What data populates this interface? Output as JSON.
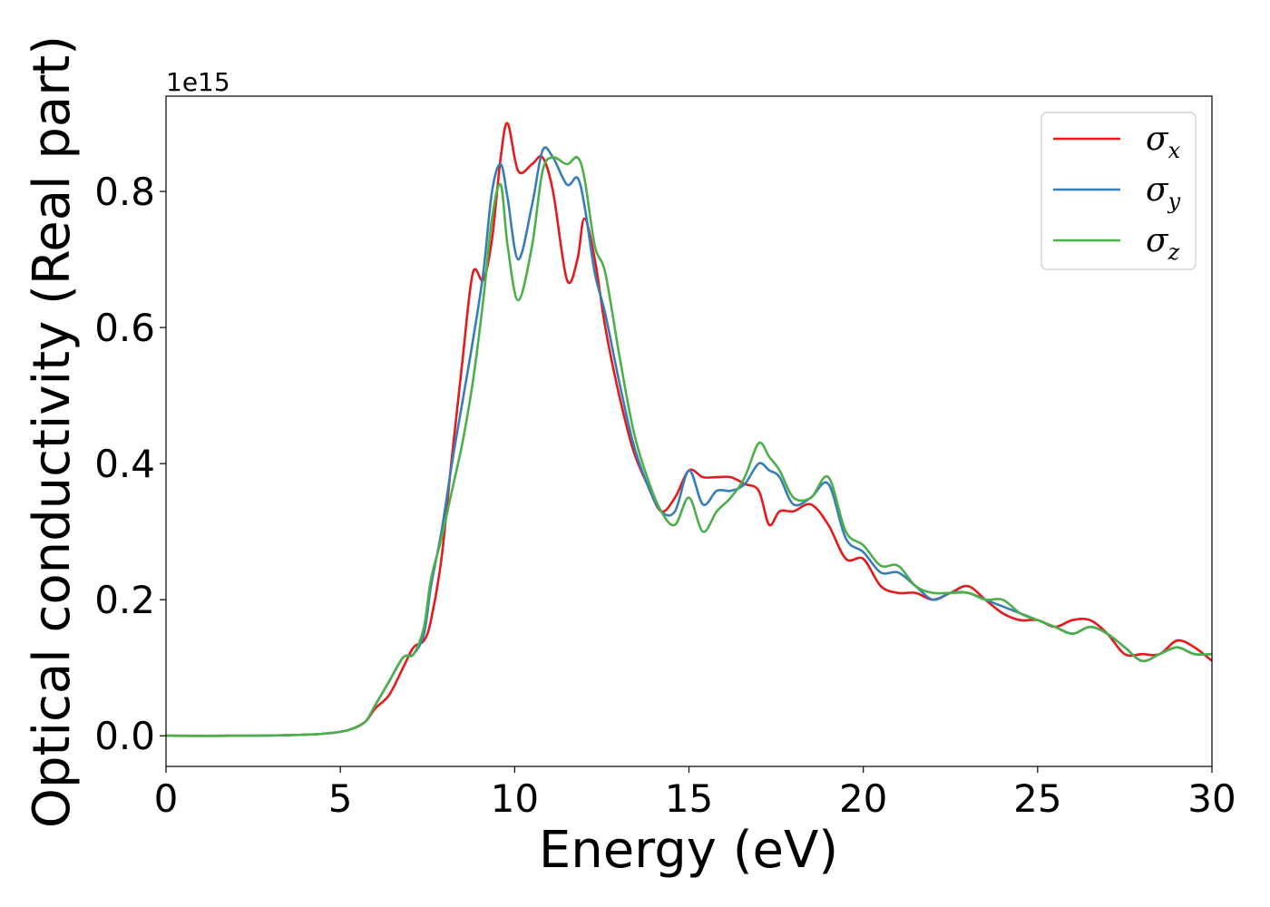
{
  "chart_data": {
    "type": "line",
    "title": "",
    "xlabel": "Energy (eV)",
    "ylabel": "Optical conductivity (Real part)",
    "y_offset_text": "1e15",
    "y_scale": 1000000000000000.0,
    "xlim": [
      0,
      30
    ],
    "ylim": [
      -0.045,
      0.94
    ],
    "x_ticks": [
      0,
      5,
      10,
      15,
      20,
      25,
      30
    ],
    "x_tick_labels": [
      "0",
      "5",
      "10",
      "15",
      "20",
      "25",
      "30"
    ],
    "y_ticks": [
      0.0,
      0.2,
      0.4,
      0.6,
      0.8
    ],
    "y_tick_labels": [
      "0.0",
      "0.2",
      "0.4",
      "0.6",
      "0.8"
    ],
    "grid": false,
    "legend_position": "top-right",
    "series": [
      {
        "name": "σ_x",
        "symbol": "σ",
        "subscript": "x",
        "color": "#e41a1c",
        "x": [
          0,
          2,
          3.5,
          4.5,
          5.2,
          5.7,
          6.0,
          6.4,
          6.8,
          7.1,
          7.4,
          7.6,
          7.9,
          8.2,
          8.5,
          8.8,
          9.1,
          9.35,
          9.6,
          9.8,
          10.1,
          10.5,
          10.8,
          11.1,
          11.5,
          11.8,
          12.0,
          12.3,
          12.6,
          13.0,
          13.4,
          13.8,
          14.2,
          14.6,
          15.0,
          15.4,
          15.8,
          16.2,
          16.6,
          17.0,
          17.3,
          17.6,
          18.0,
          18.5,
          19.0,
          19.5,
          20.0,
          20.5,
          21.0,
          21.5,
          22.0,
          22.5,
          23.0,
          23.5,
          24.0,
          24.5,
          25.0,
          25.5,
          26.0,
          26.5,
          27.0,
          27.5,
          28.0,
          28.5,
          29.0,
          29.5,
          30.0
        ],
        "y": [
          0.0,
          0.0,
          0.001,
          0.003,
          0.008,
          0.02,
          0.04,
          0.06,
          0.1,
          0.13,
          0.14,
          0.17,
          0.26,
          0.41,
          0.55,
          0.68,
          0.67,
          0.73,
          0.85,
          0.9,
          0.83,
          0.84,
          0.85,
          0.8,
          0.67,
          0.7,
          0.76,
          0.7,
          0.6,
          0.5,
          0.42,
          0.37,
          0.33,
          0.35,
          0.39,
          0.38,
          0.38,
          0.38,
          0.37,
          0.36,
          0.31,
          0.33,
          0.33,
          0.34,
          0.31,
          0.26,
          0.26,
          0.22,
          0.21,
          0.21,
          0.2,
          0.21,
          0.22,
          0.2,
          0.18,
          0.17,
          0.17,
          0.16,
          0.17,
          0.17,
          0.15,
          0.12,
          0.12,
          0.12,
          0.14,
          0.13,
          0.11
        ]
      },
      {
        "name": "σ_y",
        "symbol": "σ",
        "subscript": "y",
        "color": "#377eb8",
        "x": [
          0,
          2,
          3.5,
          4.5,
          5.2,
          5.7,
          6.0,
          6.4,
          6.8,
          7.1,
          7.4,
          7.6,
          7.9,
          8.2,
          8.5,
          8.8,
          9.1,
          9.35,
          9.6,
          9.8,
          10.1,
          10.5,
          10.8,
          11.1,
          11.5,
          11.8,
          12.0,
          12.3,
          12.6,
          13.0,
          13.4,
          13.8,
          14.2,
          14.6,
          15.0,
          15.4,
          15.8,
          16.2,
          16.6,
          17.0,
          17.3,
          17.6,
          18.0,
          18.5,
          19.0,
          19.5,
          20.0,
          20.5,
          21.0,
          21.5,
          22.0,
          22.5,
          23.0,
          23.5,
          24.0,
          24.5,
          25.0,
          25.5,
          26.0,
          26.5,
          27.0,
          27.5,
          28.0,
          28.5,
          29.0,
          29.5,
          30.0
        ],
        "y": [
          0.0,
          0.0,
          0.001,
          0.003,
          0.008,
          0.02,
          0.045,
          0.08,
          0.115,
          0.12,
          0.15,
          0.22,
          0.3,
          0.4,
          0.49,
          0.58,
          0.68,
          0.8,
          0.84,
          0.79,
          0.7,
          0.78,
          0.86,
          0.85,
          0.81,
          0.82,
          0.78,
          0.68,
          0.62,
          0.52,
          0.43,
          0.37,
          0.33,
          0.33,
          0.39,
          0.34,
          0.36,
          0.36,
          0.37,
          0.4,
          0.39,
          0.38,
          0.34,
          0.35,
          0.37,
          0.29,
          0.27,
          0.24,
          0.24,
          0.22,
          0.2,
          0.21,
          0.21,
          0.2,
          0.19,
          0.18,
          0.17,
          0.16,
          0.15,
          0.16,
          0.15,
          0.13,
          0.11,
          0.12,
          0.13,
          0.12,
          0.12
        ]
      },
      {
        "name": "σ_z",
        "symbol": "σ",
        "subscript": "z",
        "color": "#4daf4a",
        "x": [
          0,
          2,
          3.5,
          4.5,
          5.2,
          5.7,
          6.0,
          6.4,
          6.8,
          7.1,
          7.4,
          7.6,
          7.9,
          8.2,
          8.5,
          8.8,
          9.1,
          9.35,
          9.6,
          9.8,
          10.1,
          10.5,
          10.8,
          11.1,
          11.5,
          11.8,
          12.0,
          12.3,
          12.6,
          13.0,
          13.4,
          13.8,
          14.2,
          14.6,
          15.0,
          15.4,
          15.8,
          16.2,
          16.6,
          17.0,
          17.3,
          17.6,
          18.0,
          18.5,
          19.0,
          19.5,
          20.0,
          20.5,
          21.0,
          21.5,
          22.0,
          22.5,
          23.0,
          23.5,
          24.0,
          24.5,
          25.0,
          25.5,
          26.0,
          26.5,
          27.0,
          27.5,
          28.0,
          28.5,
          29.0,
          29.5,
          30.0
        ],
        "y": [
          0.0,
          0.0,
          0.001,
          0.003,
          0.008,
          0.02,
          0.045,
          0.08,
          0.115,
          0.12,
          0.16,
          0.23,
          0.29,
          0.36,
          0.43,
          0.52,
          0.64,
          0.76,
          0.81,
          0.72,
          0.64,
          0.72,
          0.83,
          0.85,
          0.84,
          0.85,
          0.82,
          0.72,
          0.68,
          0.56,
          0.45,
          0.38,
          0.33,
          0.31,
          0.35,
          0.3,
          0.33,
          0.35,
          0.38,
          0.43,
          0.41,
          0.39,
          0.35,
          0.35,
          0.38,
          0.3,
          0.28,
          0.25,
          0.25,
          0.22,
          0.21,
          0.21,
          0.21,
          0.2,
          0.2,
          0.18,
          0.17,
          0.16,
          0.15,
          0.16,
          0.15,
          0.13,
          0.11,
          0.12,
          0.13,
          0.12,
          0.12
        ]
      }
    ]
  }
}
